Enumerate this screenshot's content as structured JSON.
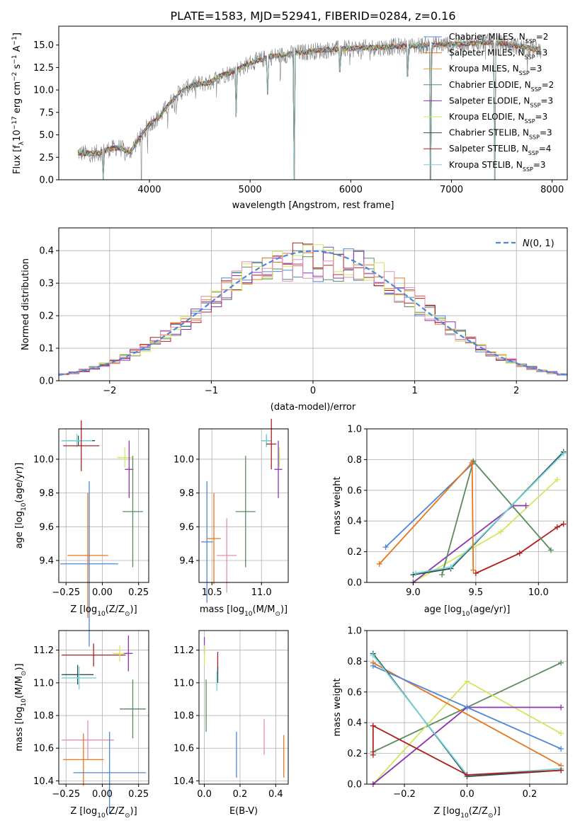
{
  "figure": {
    "title": "PLATE=1583, MJD=52941, FIBERID=0284, z=0.16"
  },
  "colors": {
    "chabrier_miles": "#4f86d9",
    "salpeter_miles": "#e8751a",
    "kroupa_miles": "#d9a326",
    "chabrier_elodie": "#5b8a5b",
    "salpeter_elodie": "#8e34b2",
    "kroupa_elodie": "#cfe85a",
    "chabrier_stelib": "#2f4f4f",
    "salpeter_stelib": "#b01f1f",
    "kroupa_stelib": "#76d3da",
    "pink": "#e38fb3",
    "data": "#808080",
    "gaussian": "#4f86d9"
  },
  "chart_data": [
    {
      "type": "line",
      "panel": "spectrum",
      "xlabel": "wavelength [Angstrom, rest frame]",
      "ylabel_parts": [
        "Flux [f",
        "λ",
        "10",
        "−17",
        " erg cm",
        "−2",
        " s",
        "−1",
        " A",
        "−1",
        "]"
      ],
      "xlim": [
        3100,
        8150
      ],
      "ylim": [
        0,
        17.1
      ],
      "xticks": [
        4000,
        5000,
        6000,
        7000,
        8000
      ],
      "yticks": [
        0.0,
        2.5,
        5.0,
        7.5,
        10.0,
        12.5,
        15.0
      ],
      "legend_location": "upper right",
      "legend": [
        {
          "model": "Chabrier MILES",
          "nssp": "2",
          "color_key": "chabrier_miles"
        },
        {
          "model": "Salpeter MILES",
          "nssp": "3",
          "color_key": "salpeter_miles"
        },
        {
          "model": "Kroupa MILES",
          "nssp": "3",
          "color_key": "kroupa_miles"
        },
        {
          "model": "Chabrier ELODIE",
          "nssp": "2",
          "color_key": "chabrier_elodie"
        },
        {
          "model": "Salpeter ELODIE",
          "nssp": "3",
          "color_key": "salpeter_elodie"
        },
        {
          "model": "Kroupa ELODIE",
          "nssp": "3",
          "color_key": "kroupa_elodie"
        },
        {
          "model": "Chabrier STELIB",
          "nssp": "3",
          "color_key": "chabrier_stelib"
        },
        {
          "model": "Salpeter STELIB",
          "nssp": "4",
          "color_key": "salpeter_stelib"
        },
        {
          "model": "Kroupa STELIB",
          "nssp": "3",
          "color_key": "kroupa_stelib"
        }
      ],
      "continuum": {
        "x": [
          3290,
          3400,
          3500,
          3600,
          3700,
          3800,
          3900,
          4000,
          4100,
          4200,
          4300,
          4400,
          4500,
          4600,
          4700,
          4800,
          4900,
          5000,
          5200,
          5400,
          5600,
          5800,
          6000,
          6200,
          6400,
          6600,
          6800,
          7000,
          7200,
          7400,
          7600,
          7800,
          7890
        ],
        "y": [
          3.0,
          2.9,
          3.0,
          3.4,
          3.6,
          3.0,
          4.6,
          6.2,
          7.0,
          8.5,
          9.7,
          10.4,
          10.7,
          10.8,
          11.6,
          11.9,
          12.4,
          13.0,
          13.7,
          14.0,
          14.3,
          14.5,
          14.6,
          14.7,
          14.8,
          14.9,
          15.0,
          15.1,
          15.2,
          15.3,
          15.0,
          14.6,
          14.5
        ]
      },
      "absorption_dips": [
        {
          "x": 3540,
          "depth": 0.0
        },
        {
          "x": 3920,
          "depth": 0.0
        },
        {
          "x": 5440,
          "depth": 0.0
        },
        {
          "x": 6790,
          "depth": 0.0
        },
        {
          "x": 7430,
          "depth": 0.0
        },
        {
          "x": 4860,
          "depth": 7.0
        },
        {
          "x": 5175,
          "depth": 9.5
        },
        {
          "x": 5890,
          "depth": 12.0
        },
        {
          "x": 6563,
          "depth": 11.5
        }
      ]
    },
    {
      "type": "histogram",
      "panel": "residuals",
      "xlabel": "(data-model)/error",
      "ylabel": "Normed distribution",
      "xlim": [
        -2.5,
        2.5
      ],
      "ylim": [
        0.0,
        0.47
      ],
      "xticks": [
        -2,
        -1,
        0,
        1,
        2
      ],
      "yticks": [
        0.0,
        0.1,
        0.2,
        0.3,
        0.4
      ],
      "grid": true,
      "bin_width": 0.1,
      "bin_range": [
        -2.5,
        2.5
      ],
      "legend_location": "upper right",
      "legend": [
        {
          "label_main": "N",
          "label_args": "(0, 1)",
          "style": "dashed",
          "color_key": "gaussian"
        }
      ],
      "hist_color_keys": [
        "salpeter_miles",
        "chabrier_miles",
        "chabrier_elodie",
        "salpeter_stelib",
        "salpeter_elodie",
        "kroupa_elodie",
        "pink"
      ]
    },
    {
      "type": "errorbar",
      "panel": "age_vs_Z",
      "xlabel_parts": [
        "Z [log",
        "10",
        "(Z/Z",
        "⊙",
        ")]"
      ],
      "ylabel_parts": [
        "age  [log",
        "10",
        "(age/yr)]"
      ],
      "xlim": [
        -0.3,
        0.32
      ],
      "ylim": [
        9.27,
        10.18
      ],
      "xticks": [
        -0.25,
        0.0,
        0.25
      ],
      "xticklabels": [
        "−0.25",
        "0.00",
        "0.25"
      ],
      "yticks": [
        9.4,
        9.6,
        9.8,
        10.0
      ],
      "grid": true,
      "points": [
        {
          "x": -0.165,
          "xerr": 0.115,
          "y": 10.11,
          "yerr": 0.03,
          "color_key": "chabrier_stelib"
        },
        {
          "x": -0.175,
          "xerr": 0.105,
          "y": 10.11,
          "yerr": 0.04,
          "color_key": "kroupa_stelib"
        },
        {
          "x": -0.145,
          "xerr": 0.125,
          "y": 10.08,
          "yerr": 0.15,
          "color_key": "salpeter_stelib"
        },
        {
          "x": 0.155,
          "xerr": 0.05,
          "y": 10.01,
          "yerr": 0.06,
          "color_key": "kroupa_elodie"
        },
        {
          "x": 0.185,
          "xerr": 0.03,
          "y": 9.94,
          "yerr": 0.17,
          "color_key": "salpeter_elodie"
        },
        {
          "x": 0.21,
          "xerr": 0.07,
          "y": 9.69,
          "yerr": 0.33,
          "color_key": "chabrier_elodie"
        },
        {
          "x": -0.09,
          "xerr": 0.2,
          "y": 9.38,
          "yerr": 0.49,
          "color_key": "chabrier_miles"
        },
        {
          "x": -0.1,
          "xerr": 0.14,
          "y": 9.43,
          "yerr": 0.37,
          "color_key": "salpeter_miles"
        }
      ]
    },
    {
      "type": "errorbar",
      "panel": "age_vs_mass",
      "xlabel_parts": [
        "mass [log",
        "10",
        "(M/M",
        "⊙",
        ")]"
      ],
      "ylabel_parts": [],
      "xlim": [
        10.37,
        11.27
      ],
      "ylim": [
        9.27,
        10.18
      ],
      "xticks": [
        10.5,
        11.0
      ],
      "xticklabels": [
        "10.5",
        "11.0"
      ],
      "yticks": [
        9.4,
        9.6,
        9.8,
        10.0
      ],
      "grid": true,
      "points": [
        {
          "x": 11.05,
          "xerr": 0.05,
          "y": 10.11,
          "yerr": 0.03,
          "color_key": "chabrier_stelib"
        },
        {
          "x": 11.05,
          "xerr": 0.05,
          "y": 10.11,
          "yerr": 0.04,
          "color_key": "kroupa_stelib"
        },
        {
          "x": 11.1,
          "xerr": 0.05,
          "y": 10.09,
          "yerr": 0.15,
          "color_key": "salpeter_stelib"
        },
        {
          "x": 11.18,
          "xerr": 0.01,
          "y": 10.01,
          "yerr": 0.06,
          "color_key": "kroupa_elodie"
        },
        {
          "x": 11.17,
          "xerr": 0.04,
          "y": 9.94,
          "yerr": 0.17,
          "color_key": "salpeter_elodie"
        },
        {
          "x": 10.84,
          "xerr": 0.1,
          "y": 9.69,
          "yerr": 0.33,
          "color_key": "chabrier_elodie"
        },
        {
          "x": 10.45,
          "xerr": 0.06,
          "y": 9.51,
          "yerr": 0.36,
          "color_key": "chabrier_miles"
        },
        {
          "x": 10.52,
          "xerr": 0.07,
          "y": 9.53,
          "yerr": 0.27,
          "color_key": "salpeter_miles"
        },
        {
          "x": 10.65,
          "xerr": 0.1,
          "y": 9.43,
          "yerr": 0.22,
          "color_key": "pink"
        }
      ]
    },
    {
      "type": "line",
      "panel": "mass_weight_vs_age",
      "xlabel_parts": [
        "age  [log",
        "10",
        "(age/yr)]"
      ],
      "ylabel": "mass weight",
      "xlim": [
        8.63,
        10.23
      ],
      "ylim": [
        0.0,
        1.0
      ],
      "xticks": [
        9.0,
        9.5,
        10.0
      ],
      "xticklabels": [
        "9.0",
        "9.5",
        "10.0"
      ],
      "yticks": [
        0.0,
        0.2,
        0.4,
        0.6,
        0.8,
        1.0
      ],
      "yticklabels": [
        "0.0",
        "0.2",
        "0.4",
        "0.6",
        "0.8",
        "1.0"
      ],
      "grid": true,
      "series": [
        {
          "color_key": "kroupa_elodie",
          "x": [
            9.0,
            9.7,
            10.15
          ],
          "y": [
            0.0,
            0.33,
            0.67
          ]
        },
        {
          "color_key": "salpeter_elodie",
          "x": [
            9.0,
            9.8,
            9.9
          ],
          "y": [
            0.0,
            0.5,
            0.5
          ]
        },
        {
          "color_key": "salpeter_stelib",
          "x": [
            9.5,
            9.85,
            10.15,
            10.2
          ],
          "y": [
            0.06,
            0.19,
            0.36,
            0.38
          ]
        },
        {
          "color_key": "chabrier_elodie",
          "x": [
            9.48,
            10.1
          ],
          "y": [
            0.79,
            0.21
          ]
        },
        {
          "color_key": "chabrier_elodie",
          "x": [
            9.23,
            9.48
          ],
          "y": [
            0.05,
            0.79
          ]
        },
        {
          "color_key": "chabrier_stelib",
          "x": [
            9.0,
            9.3,
            10.2
          ],
          "y": [
            0.05,
            0.09,
            0.85
          ]
        },
        {
          "color_key": "kroupa_stelib",
          "x": [
            9.02,
            9.3,
            10.2
          ],
          "y": [
            0.06,
            0.1,
            0.84
          ]
        },
        {
          "color_key": "chabrier_miles",
          "x": [
            8.78,
            9.47
          ],
          "y": [
            0.23,
            0.77
          ]
        },
        {
          "color_key": "salpeter_miles",
          "x": [
            8.73,
            9.47,
            9.48
          ],
          "y": [
            0.12,
            0.78,
            0.08
          ]
        }
      ]
    },
    {
      "type": "errorbar",
      "panel": "mass_vs_Z",
      "xlabel_parts": [
        "Z [log",
        "10",
        "(Z/Z",
        "⊙",
        ")]"
      ],
      "ylabel_parts": [
        "mass [log",
        "10",
        "(M/M",
        "⊙",
        ")]"
      ],
      "xlim": [
        -0.3,
        0.32
      ],
      "ylim": [
        10.38,
        11.32
      ],
      "xticks": [
        -0.25,
        0.0,
        0.25
      ],
      "xticklabels": [
        "−0.25",
        "0.00",
        "0.25"
      ],
      "yticks": [
        10.4,
        10.6,
        10.8,
        11.0,
        11.2
      ],
      "grid": true,
      "points": [
        {
          "x": -0.06,
          "xerr": 0.22,
          "y": 11.17,
          "yerr": 0.07,
          "color_key": "salpeter_stelib"
        },
        {
          "x": 0.12,
          "xerr": 0.05,
          "y": 11.18,
          "yerr": 0.05,
          "color_key": "kroupa_elodie"
        },
        {
          "x": 0.18,
          "xerr": 0.03,
          "y": 11.18,
          "yerr": 0.11,
          "color_key": "salpeter_elodie"
        },
        {
          "x": -0.17,
          "xerr": 0.11,
          "y": 11.05,
          "yerr": 0.06,
          "color_key": "chabrier_stelib"
        },
        {
          "x": -0.16,
          "xerr": 0.12,
          "y": 11.03,
          "yerr": 0.07,
          "color_key": "kroupa_stelib"
        },
        {
          "x": 0.21,
          "xerr": 0.09,
          "y": 10.84,
          "yerr": 0.18,
          "color_key": "chabrier_elodie"
        },
        {
          "x": -0.1,
          "xerr": 0.18,
          "y": 10.65,
          "yerr": 0.12,
          "color_key": "pink"
        },
        {
          "x": -0.13,
          "xerr": 0.14,
          "y": 10.53,
          "yerr": 0.16,
          "color_key": "salpeter_miles"
        },
        {
          "x": 0.05,
          "xerr": 0.25,
          "y": 10.45,
          "yerr": 0.25,
          "color_key": "chabrier_miles"
        }
      ]
    },
    {
      "type": "errorbar",
      "panel": "mass_vs_ebv",
      "xlabel": "E(B-V)",
      "ylabel_parts": [],
      "xlim": [
        -0.03,
        0.47
      ],
      "ylim": [
        10.38,
        11.32
      ],
      "xticks": [
        0.0,
        0.2,
        0.4
      ],
      "xticklabels": [
        "0.0",
        "0.2",
        "0.4"
      ],
      "yticks": [
        10.4,
        10.6,
        10.8,
        11.0,
        11.2
      ],
      "grid": true,
      "points": [
        {
          "x": 0.0,
          "y": 11.23,
          "yerr": 0.05,
          "color_key": "salpeter_elodie"
        },
        {
          "x": 0.0,
          "y": 11.17,
          "yerr": 0.06,
          "color_key": "kroupa_elodie"
        },
        {
          "x": 0.075,
          "y": 11.12,
          "yerr": 0.07,
          "color_key": "salpeter_stelib"
        },
        {
          "x": 0.075,
          "y": 11.05,
          "yerr": 0.05,
          "color_key": "chabrier_stelib"
        },
        {
          "x": 0.07,
          "y": 11.01,
          "yerr": 0.06,
          "color_key": "kroupa_stelib"
        },
        {
          "x": 0.01,
          "y": 10.86,
          "yerr": 0.16,
          "color_key": "chabrier_elodie"
        },
        {
          "x": 0.335,
          "y": 10.67,
          "yerr": 0.11,
          "color_key": "pink"
        },
        {
          "x": 0.18,
          "y": 10.56,
          "yerr": 0.14,
          "color_key": "chabrier_miles"
        },
        {
          "x": 0.445,
          "y": 10.55,
          "yerr": 0.13,
          "color_key": "salpeter_miles"
        }
      ]
    },
    {
      "type": "line",
      "panel": "mass_weight_vs_Z",
      "xlabel_parts": [
        "Z [log",
        "10",
        "(Z/Z",
        "⊙",
        ")]"
      ],
      "ylabel": "mass weight",
      "xlim": [
        -0.32,
        0.32
      ],
      "ylim": [
        0.0,
        1.0
      ],
      "xticks": [
        -0.2,
        0.0,
        0.2
      ],
      "xticklabels": [
        "−0.2",
        "0.0",
        "0.2"
      ],
      "yticks": [
        0.0,
        0.2,
        0.4,
        0.6,
        0.8,
        1.0
      ],
      "yticklabels": [
        "0.0",
        "0.2",
        "0.4",
        "0.6",
        "0.8",
        "1.0"
      ],
      "grid": true,
      "series": [
        {
          "color_key": "chabrier_elodie",
          "x": [
            -0.3,
            0.3
          ],
          "y": [
            0.21,
            0.79
          ]
        },
        {
          "color_key": "kroupa_elodie",
          "x": [
            -0.3,
            0.0,
            0.3
          ],
          "y": [
            0.0,
            0.67,
            0.33
          ]
        },
        {
          "color_key": "salpeter_elodie",
          "x": [
            -0.3,
            0.0,
            0.3
          ],
          "y": [
            0.0,
            0.5,
            0.5
          ]
        },
        {
          "color_key": "salpeter_miles",
          "x": [
            -0.3,
            0.3
          ],
          "y": [
            0.79,
            0.12
          ]
        },
        {
          "color_key": "chabrier_miles",
          "x": [
            -0.3,
            0.0,
            0.3
          ],
          "y": [
            0.77,
            0.5,
            0.23
          ]
        },
        {
          "color_key": "chabrier_stelib",
          "x": [
            -0.3,
            0.0,
            0.3
          ],
          "y": [
            0.85,
            0.05,
            0.09
          ]
        },
        {
          "color_key": "kroupa_stelib",
          "x": [
            -0.3,
            0.0,
            0.3
          ],
          "y": [
            0.84,
            0.06,
            0.1
          ]
        },
        {
          "color_key": "salpeter_stelib",
          "x": [
            -0.3,
            -0.3,
            0.0,
            0.3
          ],
          "y": [
            0.19,
            0.38,
            0.06,
            0.09
          ]
        }
      ]
    }
  ]
}
